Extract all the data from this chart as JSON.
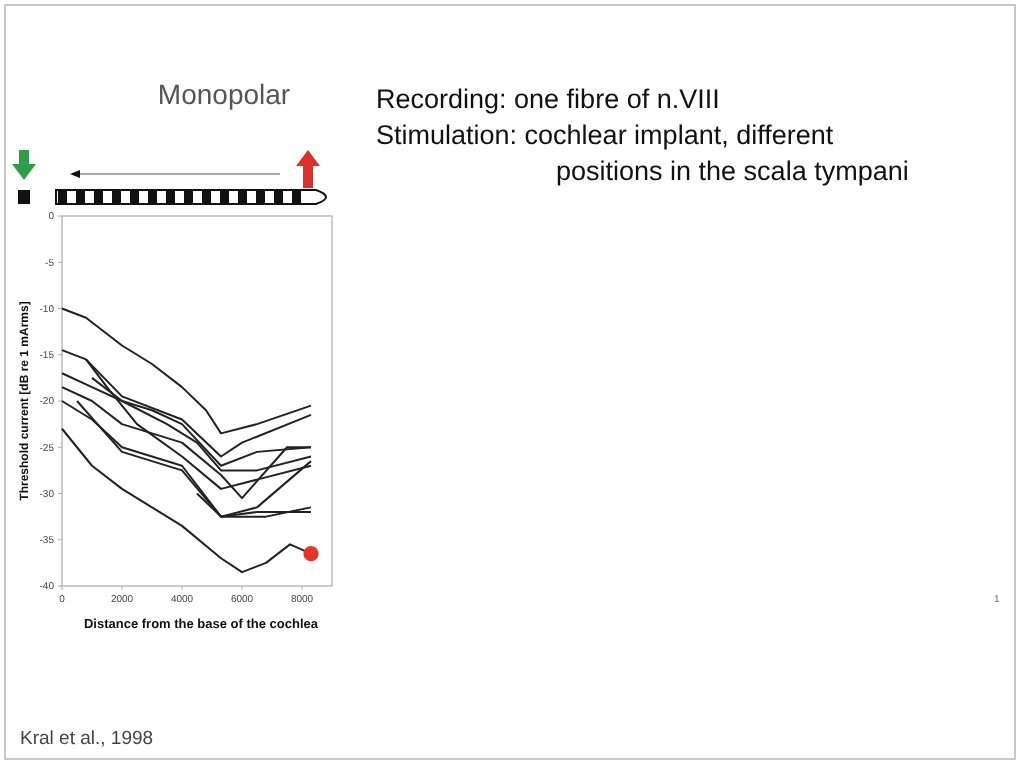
{
  "chart_data": {
    "type": "line",
    "title": "Monopolar",
    "xlabel": "Distance from the base of the cochlea",
    "ylabel": "Threshold current [dB re 1 mArms]",
    "annotations": [
      "Recording: one fibre of n.VIII",
      "Stimulation: cochlear implant, different",
      "positions in the scala tympani",
      "Kral et al., 1998",
      "1"
    ],
    "xlim": [
      0,
      9000
    ],
    "xticks": [
      0,
      2000,
      4000,
      6000,
      8000
    ],
    "ylim": [
      -40,
      0
    ],
    "yticks": [
      0,
      -5,
      -10,
      -15,
      -20,
      -25,
      -30,
      -35,
      -40
    ],
    "grid": false,
    "series": [
      {
        "color": "#222222",
        "x": [
          0,
          800,
          2000,
          3000,
          4000,
          4800,
          5300,
          6500,
          8300
        ],
        "values": [
          -10,
          -11,
          -14,
          -16,
          -18.5,
          -21,
          -23.5,
          -22.5,
          -20.5
        ]
      },
      {
        "color": "#222222",
        "x": [
          0,
          800,
          2000,
          4000,
          5300,
          6000,
          8300
        ],
        "values": [
          -14.5,
          -15.5,
          -19.5,
          -22,
          -26,
          -24.5,
          -21.5
        ]
      },
      {
        "color": "#222222",
        "x": [
          0,
          1000,
          2000,
          3000,
          4000,
          5300,
          6500,
          8300
        ],
        "values": [
          -17,
          -18.5,
          -20,
          -21,
          -22.5,
          -27,
          -25.5,
          -25
        ]
      },
      {
        "color": "#222222",
        "x": [
          0,
          1000,
          2000,
          4000,
          5300,
          6000,
          7500,
          8300
        ],
        "values": [
          -18.5,
          -20,
          -22.5,
          -24.5,
          -28,
          -30.5,
          -25,
          -25
        ]
      },
      {
        "color": "#222222",
        "x": [
          800,
          1500,
          2500,
          4000,
          5300,
          6500,
          8300
        ],
        "values": [
          -15.5,
          -18.5,
          -22.5,
          -26,
          -29.5,
          -28.5,
          -27
        ]
      },
      {
        "color": "#222222",
        "x": [
          1000,
          2000,
          3500,
          4500,
          5300,
          6500,
          8300
        ],
        "values": [
          -17.5,
          -20,
          -22.5,
          -24.5,
          -27.5,
          -27.5,
          -26
        ]
      },
      {
        "color": "#222222",
        "x": [
          0,
          1000,
          2000,
          4000,
          5300,
          6500,
          8300
        ],
        "values": [
          -20,
          -22,
          -25,
          -27,
          -32.5,
          -31.5,
          -26.5
        ]
      },
      {
        "color": "#222222",
        "x": [
          500,
          2000,
          4000,
          5300,
          6800,
          8300
        ],
        "values": [
          -20,
          -25.5,
          -27.5,
          -32.5,
          -32.5,
          -31.5
        ]
      },
      {
        "color": "#222222",
        "x": [
          4500,
          5300,
          6500,
          8300
        ],
        "values": [
          -30,
          -32.5,
          -32,
          -32
        ]
      },
      {
        "color": "#222222",
        "x": [
          0,
          1000,
          2000,
          4000,
          5300,
          6000,
          6800,
          7600,
          8300
        ],
        "values": [
          -23,
          -27,
          -29.5,
          -33.5,
          -37,
          -38.5,
          -37.5,
          -35.5,
          -36.5
        ]
      },
      {
        "type": "scatter",
        "marker": "circle",
        "color": "#e8332a",
        "x": [
          8300
        ],
        "values": [
          -36.5
        ]
      }
    ]
  }
}
